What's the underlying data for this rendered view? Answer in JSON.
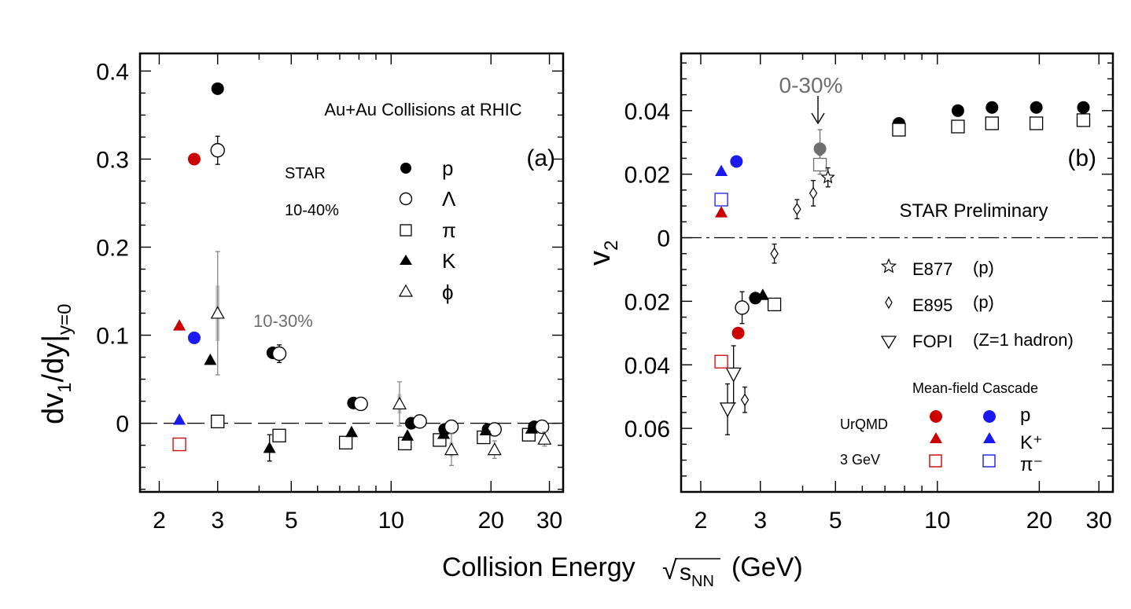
{
  "figure": {
    "xaxis_title": "Collision Energy",
    "sqrt_symbol": "√",
    "sqrt_var": "s",
    "sqrt_sub": "NN",
    "units": "(GeV)",
    "colors": {
      "ink": "#000000",
      "gray": "#6e6e6e",
      "lightgray": "#bdbdbd",
      "red": "#cc0000",
      "blue": "#1a1aee"
    }
  },
  "chart_data": [
    {
      "type": "scatter",
      "panel": "a",
      "panel_label": "(a)",
      "title": "Au+Au Collisions at RHIC",
      "labels": {
        "experiment": "STAR",
        "centrality": "10-40%",
        "centrality_alt": "10-30%"
      },
      "ylabel": {
        "main": "dv",
        "sub1": "1",
        "mid": "/dy|",
        "sub2": "y=0"
      },
      "xlabel": "Collision Energy √sNN (GeV)",
      "xscale": "log",
      "xlim": [
        1.75,
        33
      ],
      "ylim": [
        -0.078,
        0.42
      ],
      "xticks": [
        2,
        3,
        5,
        10,
        20,
        30
      ],
      "xtick_labels": [
        "2",
        "3",
        "5",
        "10",
        "20",
        "30"
      ],
      "yticks": [
        0,
        0.1,
        0.2,
        0.3,
        0.4
      ],
      "ytick_labels": [
        "0",
        "0.1",
        "0.2",
        "0.3",
        "0.4"
      ],
      "reference_line": 0,
      "legend": [
        {
          "marker": "filled-circle",
          "label": "p"
        },
        {
          "marker": "open-circle",
          "label": "Λ"
        },
        {
          "marker": "open-square",
          "label": "π"
        },
        {
          "marker": "filled-triangle",
          "label": "K"
        },
        {
          "marker": "open-triangle",
          "label": "ϕ"
        }
      ],
      "series": [
        {
          "name": "p",
          "marker": "filled-circle",
          "color": "#000000",
          "x": [
            3.0,
            4.4,
            7.7,
            11.5,
            14.5,
            19.6,
            27
          ],
          "y": [
            0.38,
            0.08,
            0.023,
            0.0,
            -0.007,
            -0.007,
            -0.004
          ],
          "err": [
            0,
            0.006,
            0,
            0,
            0,
            0,
            0
          ]
        },
        {
          "name": "Λ",
          "marker": "open-circle",
          "color": "#000000",
          "x": [
            3.0,
            4.6,
            8.1,
            12.2,
            15.2,
            20.5,
            28.5
          ],
          "y": [
            0.31,
            0.079,
            0.022,
            0.002,
            -0.004,
            -0.007,
            -0.004
          ],
          "err": [
            0.016,
            0.01,
            0,
            0,
            0,
            0,
            0
          ]
        },
        {
          "name": "π",
          "marker": "open-square",
          "color": "#000000",
          "x": [
            3.0,
            4.6,
            7.3,
            11.0,
            14.0,
            19.0,
            26
          ],
          "y": [
            0.002,
            -0.014,
            -0.022,
            -0.023,
            -0.019,
            -0.016,
            -0.013
          ],
          "err": [
            0,
            0,
            0,
            0,
            0,
            0,
            0
          ]
        },
        {
          "name": "K",
          "marker": "filled-triangle",
          "color": "#000000",
          "x": [
            2.85,
            4.3,
            7.6,
            11.2,
            14.4,
            19.3,
            26.5
          ],
          "y": [
            0.072,
            -0.028,
            -0.01,
            -0.014,
            -0.012,
            -0.008,
            -0.006
          ],
          "err": [
            0,
            0.015,
            0,
            0,
            0,
            0,
            0
          ]
        },
        {
          "name": "ϕ",
          "marker": "open-triangle",
          "color": "#000000",
          "x": [
            3.0,
            10.6,
            15.2,
            20.5,
            29
          ],
          "y": [
            0.125,
            0.022,
            -0.03,
            -0.03,
            -0.018
          ],
          "err": [
            0.07,
            0.025,
            0.018,
            0.01,
            0.008
          ]
        },
        {
          "name": "UrQMD Mean-field p",
          "marker": "filled-circle",
          "color": "#cc0000",
          "x": [
            2.55
          ],
          "y": [
            0.3
          ],
          "err": [
            0
          ]
        },
        {
          "name": "UrQMD Cascade p",
          "marker": "filled-circle",
          "color": "#1a1aee",
          "x": [
            2.55
          ],
          "y": [
            0.097
          ],
          "err": [
            0
          ]
        },
        {
          "name": "UrQMD Mean-field K+",
          "marker": "filled-triangle",
          "color": "#cc0000",
          "x": [
            2.3
          ],
          "y": [
            0.111
          ],
          "err": [
            0
          ]
        },
        {
          "name": "UrQMD Cascade K+",
          "marker": "filled-triangle",
          "color": "#1a1aee",
          "x": [
            2.3
          ],
          "y": [
            0.004
          ],
          "err": [
            0
          ]
        },
        {
          "name": "UrQMD Mean-field π-",
          "marker": "open-square",
          "color": "#cc0000",
          "x": [
            2.3
          ],
          "y": [
            -0.024
          ],
          "err": [
            0
          ]
        }
      ]
    },
    {
      "type": "scatter",
      "panel": "b",
      "panel_label": "(b)",
      "title": "STAR Preliminary",
      "labels": {
        "centrality": "0-30%"
      },
      "ylabel": {
        "main": "v",
        "sub1": "2"
      },
      "xlabel": "Collision Energy √sNN (GeV)",
      "xscale": "log",
      "xlim": [
        1.75,
        33
      ],
      "ylim": [
        -0.08,
        0.058
      ],
      "xticks": [
        2,
        3,
        5,
        10,
        20,
        30
      ],
      "xtick_labels": [
        "2",
        "3",
        "5",
        "10",
        "20",
        "30"
      ],
      "yticks": [
        0.04,
        0.02,
        0,
        -0.02,
        -0.04,
        -0.06
      ],
      "ytick_labels": [
        "0.04",
        "0.02",
        "0",
        "0.02",
        "0.04",
        "0.06"
      ],
      "reference_line": 0,
      "legend": [
        {
          "marker": "open-star",
          "label": "E877",
          "note": "(p)"
        },
        {
          "marker": "open-diamond",
          "label": "E895",
          "note": "(p)"
        },
        {
          "marker": "open-inverted-triangle",
          "label": "FOPI",
          "note": "(Z=1 hadron)"
        }
      ],
      "model_legend": {
        "header": "Mean-field Cascade",
        "model": "UrQMD",
        "energy": "3 GeV",
        "rows": [
          {
            "marker": "circle",
            "label": "p"
          },
          {
            "marker": "triangle",
            "label": "K⁺"
          },
          {
            "marker": "square",
            "label": "π⁻"
          }
        ]
      },
      "series": [
        {
          "name": "STAR p",
          "marker": "filled-circle",
          "color": "#000000",
          "x": [
            2.9,
            7.7,
            11.5,
            14.5,
            19.6,
            27
          ],
          "y": [
            -0.019,
            0.036,
            0.04,
            0.041,
            0.041,
            0.041
          ],
          "err": [
            0,
            0,
            0,
            0,
            0,
            0
          ]
        },
        {
          "name": "STAR Λ",
          "marker": "open-circle",
          "color": "#000000",
          "x": [
            2.65
          ],
          "y": [
            -0.022
          ],
          "err": [
            0.005
          ]
        },
        {
          "name": "STAR π",
          "marker": "open-square",
          "color": "#000000",
          "x": [
            3.3,
            7.7,
            11.5,
            14.5,
            19.6,
            27
          ],
          "y": [
            -0.021,
            0.034,
            0.035,
            0.036,
            0.036,
            0.037
          ],
          "err": [
            0,
            0,
            0,
            0,
            0,
            0
          ]
        },
        {
          "name": "STAR K",
          "marker": "filled-triangle",
          "color": "#000000",
          "x": [
            3.05
          ],
          "y": [
            -0.018
          ],
          "err": [
            0
          ]
        },
        {
          "name": "STAR p 4.5 GeV",
          "marker": "filled-circle",
          "color": "#6e6e6e",
          "x": [
            4.5
          ],
          "y": [
            0.028
          ],
          "err": [
            0.006
          ]
        },
        {
          "name": "STAR π 4.5 GeV",
          "marker": "open-square",
          "color": "#6e6e6e",
          "x": [
            4.5
          ],
          "y": [
            0.023
          ],
          "err": [
            0.003
          ]
        },
        {
          "name": "E877",
          "marker": "open-star",
          "color": "#000000",
          "x": [
            4.75
          ],
          "y": [
            0.019
          ],
          "err": [
            0.003
          ]
        },
        {
          "name": "E895",
          "marker": "open-diamond",
          "color": "#000000",
          "x": [
            2.7,
            3.3,
            3.85,
            4.3
          ],
          "y": [
            -0.051,
            -0.005,
            0.009,
            0.014
          ],
          "err": [
            0.004,
            0.003,
            0.003,
            0.004
          ]
        },
        {
          "name": "FOPI",
          "marker": "open-inverted-triangle",
          "color": "#000000",
          "x": [
            2.4,
            2.5
          ],
          "y": [
            -0.054,
            -0.043
          ],
          "err": [
            0.008,
            0.009
          ]
        },
        {
          "name": "UrQMD Mean-field p",
          "marker": "filled-circle",
          "color": "#cc0000",
          "x": [
            2.58
          ],
          "y": [
            -0.03
          ],
          "err": [
            0
          ]
        },
        {
          "name": "UrQMD Cascade p",
          "marker": "filled-circle",
          "color": "#1a1aee",
          "x": [
            2.55
          ],
          "y": [
            0.024
          ],
          "err": [
            0
          ]
        },
        {
          "name": "UrQMD Mean-field K+",
          "marker": "filled-triangle",
          "color": "#cc0000",
          "x": [
            2.3
          ],
          "y": [
            0.008
          ],
          "err": [
            0
          ]
        },
        {
          "name": "UrQMD Cascade K+",
          "marker": "filled-triangle",
          "color": "#1a1aee",
          "x": [
            2.3
          ],
          "y": [
            0.021
          ],
          "err": [
            0
          ]
        },
        {
          "name": "UrQMD Mean-field π-",
          "marker": "open-square",
          "color": "#cc0000",
          "x": [
            2.3
          ],
          "y": [
            -0.039
          ],
          "err": [
            0
          ]
        },
        {
          "name": "UrQMD Cascade π-",
          "marker": "open-square",
          "color": "#1a1aee",
          "x": [
            2.3
          ],
          "y": [
            0.012
          ],
          "err": [
            0
          ]
        }
      ]
    }
  ]
}
